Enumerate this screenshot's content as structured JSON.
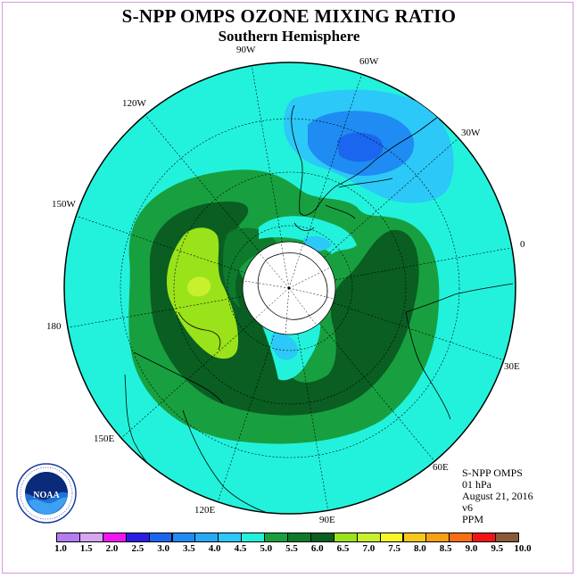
{
  "title": "S-NPP OMPS OZONE MIXING RATIO",
  "subtitle": "Southern Hemisphere",
  "longitude_labels": [
    "90W",
    "60W",
    "30W",
    "0",
    "30E",
    "60E",
    "90E",
    "120E",
    "150E",
    "180",
    "150W",
    "120W"
  ],
  "info": {
    "instrument": "S-NPP OMPS",
    "level": "01 hPa",
    "date": "August 21, 2016",
    "version": "v6",
    "units": "PPM"
  },
  "logo": {
    "text": "NOAA",
    "ring_text": "NATIONAL OCEANIC AND ATMOSPHERIC ADMINISTRATION · U.S. DEPARTMENT OF COMMERCE"
  },
  "colorbar": {
    "ticks": [
      "1.0",
      "1.5",
      "2.0",
      "2.5",
      "3.0",
      "3.5",
      "4.0",
      "4.5",
      "5.0",
      "5.5",
      "6.0",
      "6.5",
      "7.0",
      "7.5",
      "8.0",
      "8.5",
      "9.0",
      "9.5",
      "10.0"
    ],
    "colors": [
      "#b57cf0",
      "#d6a6f2",
      "#f016f0",
      "#2a1ee6",
      "#1a66ee",
      "#1e8cf2",
      "#28aaf6",
      "#2cc8f8",
      "#22f2dc",
      "#18a040",
      "#0e7a2c",
      "#0a5e22",
      "#9ae21a",
      "#c8f02e",
      "#f8f828",
      "#f8c818",
      "#f8a014",
      "#f86e14",
      "#f01414",
      "#8a5a36"
    ]
  },
  "map_legend": {
    "background_range": "4.5-5.0",
    "outer_ring_range": "5.0-5.5",
    "inner_ring_range": "5.5-6.0",
    "peak_range": "6.0-7.0",
    "low_range_south_america": "3.5-4.5"
  }
}
